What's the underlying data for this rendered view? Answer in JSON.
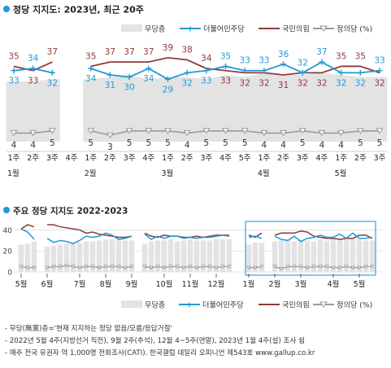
{
  "colors": {
    "dp": "#1f9ad6",
    "ppp": "#8e3b3b",
    "justice": "#9a9a9a",
    "none": "#e3e3e3",
    "accent": "#1f9ad6",
    "highlight_box": "#1f9ad6"
  },
  "chart_data": [
    {
      "type": "line",
      "title": "정당 지지도: 2023년, 최근 20주",
      "legend": {
        "placement": "top-right",
        "entries": [
          "무당층",
          "더불어민주당",
          "국민의힘",
          "정의당 (%)"
        ]
      },
      "ylim": [
        0,
        45
      ],
      "grid": false,
      "x_week_labels": [
        "1주",
        "2주",
        "3주",
        "4주",
        "1주",
        "2주",
        "3주",
        "4주",
        "1주",
        "2주",
        "3주",
        "4주",
        "5주",
        "1주",
        "2주",
        "3주",
        "4주",
        "1주",
        "2주",
        "3주"
      ],
      "x_month_labels": [
        {
          "index": 0,
          "label": "1월"
        },
        {
          "index": 4,
          "label": "2월"
        },
        {
          "index": 8,
          "label": "3월"
        },
        {
          "index": 13,
          "label": "4월"
        },
        {
          "index": 17,
          "label": "5월"
        }
      ],
      "series": [
        {
          "name": "무당층",
          "type": "area",
          "color_key": "none",
          "values": [
            28,
            28,
            29,
            null,
            29,
            30,
            31,
            29,
            30,
            30,
            29,
            31,
            30,
            32,
            31,
            31,
            32,
            31,
            30,
            30
          ]
        },
        {
          "name": "더불어민주당",
          "color_key": "dp",
          "values": [
            33,
            34,
            32,
            null,
            34,
            31,
            30,
            34,
            29,
            32,
            33,
            35,
            33,
            33,
            36,
            32,
            37,
            32,
            32,
            33
          ]
        },
        {
          "name": "국민의힘",
          "color_key": "ppp",
          "values": [
            35,
            33,
            37,
            null,
            35,
            37,
            37,
            37,
            39,
            38,
            34,
            33,
            32,
            32,
            31,
            32,
            32,
            35,
            35,
            32
          ]
        },
        {
          "name": "정의당 (%)",
          "color_key": "justice",
          "values": [
            4,
            4,
            5,
            null,
            5,
            3,
            5,
            5,
            5,
            4,
            5,
            5,
            5,
            4,
            4,
            5,
            4,
            4,
            5,
            5
          ]
        }
      ]
    },
    {
      "type": "line",
      "title": "주요 정당 지지도 2022-2023",
      "legend": {
        "placement": "bottom-right",
        "entries": [
          "무당층",
          "더불어민주당",
          "국민의힘",
          "정의당 (%)"
        ]
      },
      "ylim": [
        0,
        45
      ],
      "y_ticks": [
        0,
        20,
        40
      ],
      "grid": true,
      "x_month_labels": [
        {
          "index": 0,
          "label": "5월"
        },
        {
          "index": 4,
          "label": "6월"
        },
        {
          "index": 9,
          "label": "7월"
        },
        {
          "index": 13,
          "label": "8월"
        },
        {
          "index": 17,
          "label": "9월"
        },
        {
          "index": 22,
          "label": "10월"
        },
        {
          "index": 26,
          "label": "11월"
        },
        {
          "index": 30,
          "label": "12월"
        },
        {
          "index": 35,
          "label": "1월"
        },
        {
          "index": 39,
          "label": "2월"
        },
        {
          "index": 43,
          "label": "3월"
        },
        {
          "index": 48,
          "label": "4월"
        },
        {
          "index": 52,
          "label": "5월"
        }
      ],
      "highlight_range": [
        35,
        54
      ],
      "series": [
        {
          "name": "무당층",
          "type": "area",
          "color_key": "none",
          "values": [
            26,
            27,
            29,
            null,
            24,
            25,
            26,
            27,
            27,
            28,
            29,
            29,
            30,
            31,
            31,
            30,
            30,
            30,
            null,
            27,
            29,
            30,
            30,
            31,
            29,
            30,
            31,
            30,
            30,
            30,
            31,
            31,
            31,
            null,
            null,
            26,
            28,
            28,
            null,
            29,
            30,
            31,
            29,
            30,
            30,
            29,
            31,
            30,
            32,
            31,
            31,
            32,
            31,
            30,
            30
          ]
        },
        {
          "name": "더불어민주당",
          "color_key": "dp",
          "values": [
            41,
            38,
            31,
            null,
            32,
            28,
            30,
            29,
            27,
            30,
            34,
            33,
            34,
            37,
            35,
            31,
            32,
            34,
            null,
            36,
            31,
            34,
            32,
            34,
            34,
            32,
            33,
            32,
            33,
            33,
            34,
            35,
            34,
            null,
            null,
            33,
            34,
            32,
            null,
            34,
            31,
            30,
            34,
            29,
            32,
            33,
            35,
            33,
            33,
            36,
            32,
            37,
            32,
            32,
            33
          ]
        },
        {
          "name": "국민의힘",
          "color_key": "ppp",
          "values": [
            41,
            45,
            43,
            null,
            45,
            45,
            43,
            42,
            41,
            40,
            37,
            38,
            36,
            35,
            34,
            33,
            33,
            34,
            null,
            37,
            34,
            33,
            35,
            34,
            34,
            33,
            33,
            34,
            33,
            34,
            35,
            35,
            35,
            null,
            null,
            35,
            33,
            37,
            null,
            35,
            37,
            37,
            37,
            39,
            38,
            34,
            33,
            32,
            32,
            31,
            32,
            32,
            35,
            35,
            32
          ]
        },
        {
          "name": "정의당 (%)",
          "color_key": "justice",
          "values": [
            5,
            4,
            4,
            null,
            4,
            5,
            5,
            6,
            5,
            4,
            5,
            5,
            4,
            5,
            5,
            5,
            4,
            5,
            null,
            5,
            4,
            5,
            4,
            5,
            5,
            4,
            5,
            4,
            5,
            5,
            4,
            5,
            5,
            null,
            null,
            4,
            4,
            5,
            null,
            5,
            3,
            5,
            5,
            5,
            4,
            5,
            5,
            5,
            4,
            4,
            5,
            4,
            4,
            5,
            5
          ]
        }
      ]
    }
  ],
  "footnotes": [
    "- 무당(無黨)층='현재 지지하는 정당 없음/모름/응답거절'",
    "- 2022년 5월 4주(지방선거 직전), 9월 2주(추석), 12월 4~5주(연말), 2023년 1월 4주(설) 조사 쉼",
    "- 매주 전국 유권자 약 1,000명 전화조사(CATI). 한국갤럽 데일리 오피니언 제543호 www.gallup.co.kr"
  ]
}
